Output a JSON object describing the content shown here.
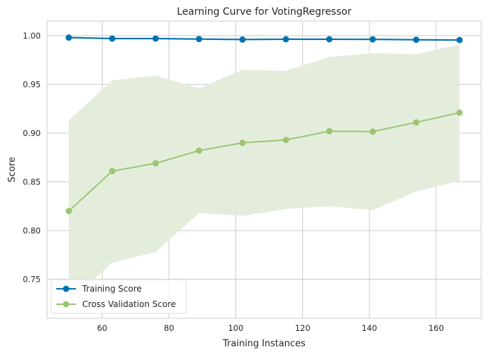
{
  "chart_data": {
    "type": "line",
    "title": "Learning Curve for VotingRegressor",
    "xlabel": "Training Instances",
    "ylabel": "Score",
    "xlim": [
      43.5,
      173.5
    ],
    "ylim": [
      0.71,
      1.015
    ],
    "xticks": [
      60,
      80,
      100,
      120,
      140,
      160
    ],
    "yticks": [
      0.75,
      0.8,
      0.85,
      0.9,
      0.95,
      1.0
    ],
    "xtick_labels": [
      "60",
      "80",
      "100",
      "120",
      "140",
      "160"
    ],
    "ytick_labels": [
      "0.75",
      "0.80",
      "0.85",
      "0.90",
      "0.95",
      "1.00"
    ],
    "grid": true,
    "legend_position": "lower-left",
    "x": [
      50,
      63,
      76,
      89,
      102,
      115,
      128,
      141,
      154,
      167
    ],
    "series": [
      {
        "name": "Training Score",
        "color": "#0072b2",
        "values": [
          0.998,
          0.997,
          0.997,
          0.9965,
          0.996,
          0.9963,
          0.9963,
          0.9962,
          0.9958,
          0.9955
        ],
        "band_lower": [
          0.997,
          0.996,
          0.996,
          0.9955,
          0.995,
          0.9953,
          0.9953,
          0.9952,
          0.9948,
          0.9945
        ],
        "band_upper": [
          0.999,
          0.998,
          0.998,
          0.9975,
          0.997,
          0.9973,
          0.9973,
          0.9972,
          0.9968,
          0.9965
        ]
      },
      {
        "name": "Cross Validation Score",
        "color": "#9cc573",
        "band_color": "#e4eddb",
        "values": [
          0.82,
          0.861,
          0.869,
          0.882,
          0.89,
          0.893,
          0.902,
          0.9015,
          0.911,
          0.921
        ],
        "band_lower": [
          0.727,
          0.767,
          0.778,
          0.818,
          0.815,
          0.822,
          0.825,
          0.821,
          0.84,
          0.851
        ],
        "band_upper": [
          0.913,
          0.954,
          0.959,
          0.946,
          0.965,
          0.964,
          0.978,
          0.982,
          0.981,
          0.991
        ]
      }
    ]
  }
}
